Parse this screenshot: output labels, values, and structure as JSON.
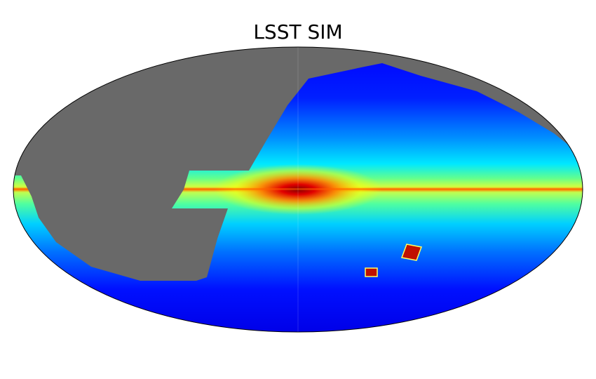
{
  "title": "LSST SIM"
}
